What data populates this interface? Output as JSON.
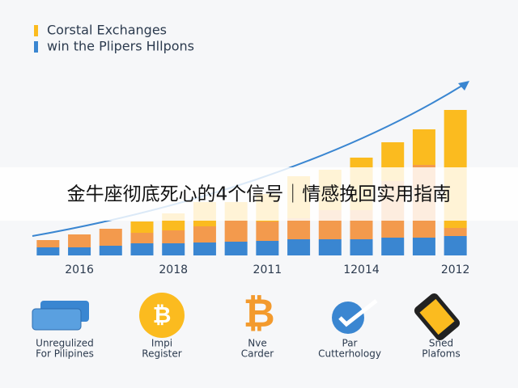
{
  "chart_data": {
    "type": "stacked_bar",
    "categories": [
      null,
      "2016",
      null,
      null,
      "2018",
      null,
      null,
      "2011",
      null,
      null,
      "12014",
      null,
      null,
      "2012"
    ],
    "series": [
      {
        "name": "win the Plipers Hllpons",
        "color": "#3a86d1",
        "values": [
          10,
          10,
          12,
          15,
          15,
          16,
          17,
          18,
          20,
          20,
          20,
          22,
          22,
          24
        ]
      },
      {
        "color": "#f39a4d",
        "values": [
          9,
          16,
          21,
          13,
          16,
          20,
          26,
          24,
          26,
          36,
          36,
          70,
          90,
          10
        ]
      },
      {
        "name": "Corstal Exchanges",
        "color": "#fbbb1f",
        "values": [
          0,
          0,
          0,
          14,
          21,
          30,
          23,
          34,
          52,
          50,
          65,
          48,
          44,
          146
        ]
      }
    ],
    "ylim": [
      0,
      200
    ]
  },
  "banner": "金牛座彻底死心的4个信号｜情感挽回实用指南",
  "icons": [
    {
      "label": [
        "Unregulized",
        "For Pilipines"
      ]
    },
    {
      "label": [
        "Impi",
        "Register"
      ]
    },
    {
      "label": [
        "Nve",
        "Carder"
      ]
    },
    {
      "label": [
        "Par",
        "Cutterhology"
      ]
    },
    {
      "label": [
        "Sned",
        "Plafoms"
      ]
    }
  ]
}
